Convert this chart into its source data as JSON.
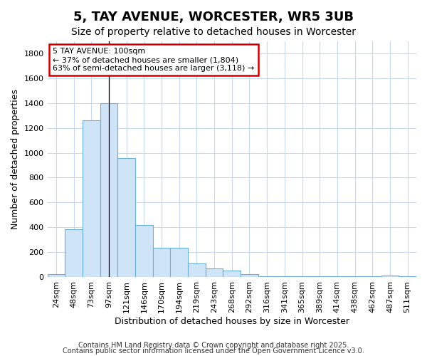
{
  "title": "5, TAY AVENUE, WORCESTER, WR5 3UB",
  "subtitle": "Size of property relative to detached houses in Worcester",
  "xlabel": "Distribution of detached houses by size in Worcester",
  "ylabel": "Number of detached properties",
  "categories": [
    "24sqm",
    "48sqm",
    "73sqm",
    "97sqm",
    "121sqm",
    "146sqm",
    "170sqm",
    "194sqm",
    "219sqm",
    "243sqm",
    "268sqm",
    "292sqm",
    "316sqm",
    "341sqm",
    "365sqm",
    "389sqm",
    "414sqm",
    "438sqm",
    "462sqm",
    "487sqm",
    "511sqm"
  ],
  "values": [
    25,
    385,
    1260,
    1400,
    955,
    420,
    235,
    235,
    110,
    70,
    50,
    20,
    8,
    5,
    5,
    5,
    3,
    3,
    3,
    10,
    3
  ],
  "bar_color": "#d0e4f7",
  "bar_edge_color": "#6baed6",
  "grid_color": "#c8d8ee",
  "bg_color": "#ffffff",
  "plot_bg_color": "#ffffff",
  "annotation_text": "5 TAY AVENUE: 100sqm\n← 37% of detached houses are smaller (1,804)\n63% of semi-detached houses are larger (3,118) →",
  "annotation_box_color": "white",
  "annotation_box_edge": "#cc0000",
  "vline_x": 3,
  "footnote1": "Contains HM Land Registry data © Crown copyright and database right 2025.",
  "footnote2": "Contains public sector information licensed under the Open Government Licence v3.0.",
  "title_fontsize": 13,
  "subtitle_fontsize": 10,
  "ylabel_fontsize": 9,
  "xlabel_fontsize": 9,
  "tick_fontsize": 8,
  "annot_fontsize": 8,
  "footnote_fontsize": 7,
  "ylim": [
    0,
    1900
  ]
}
